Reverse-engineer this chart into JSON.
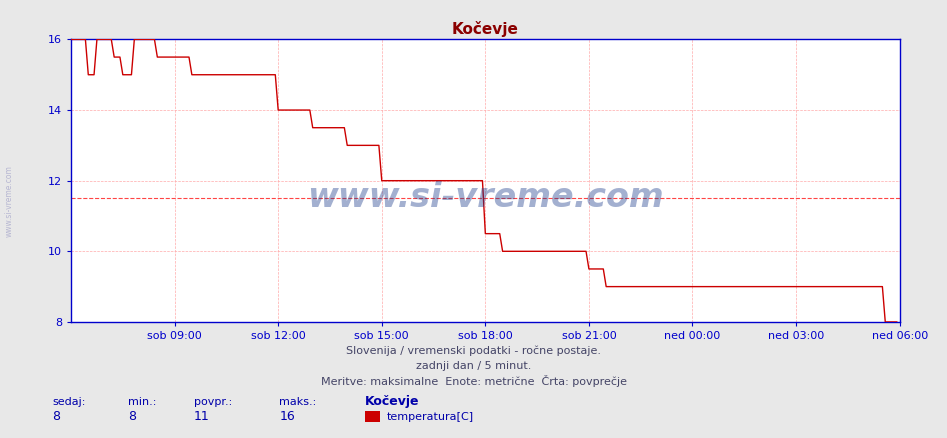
{
  "title": "Kočevje",
  "title_color": "#8b0000",
  "bg_color": "#e8e8e8",
  "plot_bg_color": "#ffffff",
  "grid_color": "#ffaaaa",
  "axis_color": "#0000cc",
  "line_color": "#cc0000",
  "avg_line_color": "#ff4444",
  "avg_line_value": 11.5,
  "ylim": [
    8,
    16
  ],
  "yticks": [
    8,
    10,
    12,
    14,
    16
  ],
  "xtick_labels": [
    "sob 09:00",
    "sob 12:00",
    "sob 15:00",
    "sob 18:00",
    "sob 21:00",
    "ned 00:00",
    "ned 03:00",
    "ned 06:00"
  ],
  "footer_line1": "Slovenija / vremenski podatki - ročne postaje.",
  "footer_line2": "zadnji dan / 5 minut.",
  "footer_line3": "Meritve: maksimalne  Enote: metrične  Črta: povprečje",
  "footer_color": "#444466",
  "legend_title": "Kočevje",
  "legend_label": "temperatura[C]",
  "legend_color": "#cc0000",
  "stats_sedaj": 8,
  "stats_min": 8,
  "stats_povpr": 11,
  "stats_maks": 16,
  "watermark_text": "www.si-vreme.com",
  "sidebar_text": "www.si-vreme.com",
  "sidebar_color": "#aaaacc"
}
